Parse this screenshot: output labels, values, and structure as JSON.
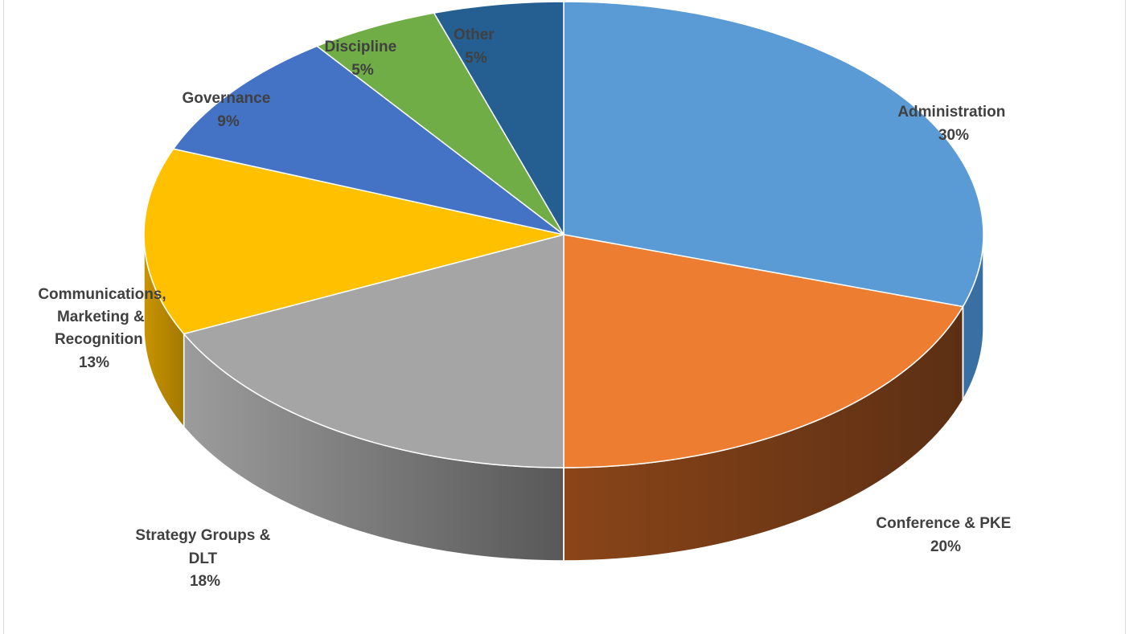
{
  "chart_data": {
    "type": "pie",
    "style": "3d-exploded-none",
    "title": "",
    "slices": [
      {
        "name": "Administration",
        "value": 30,
        "pct_label": "30%",
        "color": "#5b9bd5",
        "side_color": "#3a6fa3"
      },
      {
        "name": "Conference & PKE",
        "value": 20,
        "pct_label": "20%",
        "color": "#ed7d31",
        "side_color": "#7b3d17"
      },
      {
        "name": "Strategy Groups & DLT",
        "value": 18,
        "pct_label": "18%",
        "color": "#a5a5a5",
        "side_color": "#6e6e6e"
      },
      {
        "name": "Communications, Marketing & Recognition",
        "value": 13,
        "pct_label": "13%",
        "color": "#ffc000",
        "side_color": "#b58700"
      },
      {
        "name": "Governance",
        "value": 9,
        "pct_label": "9%",
        "color": "#4472c4",
        "side_color": "#2c4f8c"
      },
      {
        "name": "Discipline",
        "value": 5,
        "pct_label": "5%",
        "color": "#70ad47",
        "side_color": "#4a7a2c"
      },
      {
        "name": "Other",
        "value": 5,
        "pct_label": "5%",
        "color": "#255e91",
        "side_color": "#163d60"
      }
    ],
    "labels": {
      "administration": [
        "Administration",
        "30%"
      ],
      "conference": [
        "Conference & PKE",
        "20%"
      ],
      "strategy": [
        "Strategy Groups &",
        "DLT",
        "18%"
      ],
      "communications": [
        "Communications,",
        "Marketing &",
        "Recognition",
        "13%"
      ],
      "governance": [
        "Governance",
        "9%"
      ],
      "discipline": [
        "Discipline",
        "5%"
      ],
      "other": [
        "Other",
        "5%"
      ]
    }
  }
}
